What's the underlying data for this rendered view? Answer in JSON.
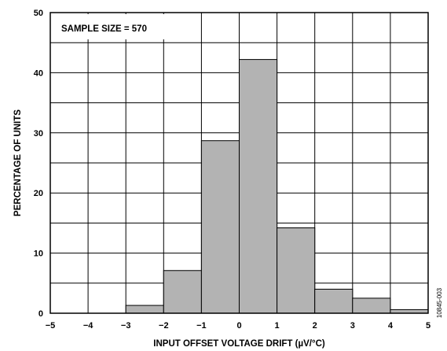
{
  "chart_data": {
    "type": "bar",
    "title": "",
    "xlabel": "INPUT OFFSET VOLTAGE DRIFT (µV/°C)",
    "ylabel": "PERCENTAGE OF UNITS",
    "xlim": [
      -5,
      5
    ],
    "ylim": [
      0,
      50
    ],
    "xticks": [
      "−5",
      "−4",
      "−3",
      "−2",
      "−1",
      "0",
      "1",
      "2",
      "3",
      "4",
      "5"
    ],
    "yticks": [
      "0",
      "10",
      "20",
      "30",
      "40",
      "50"
    ],
    "bins": [
      {
        "from": -3,
        "to": -2,
        "value": 1.3
      },
      {
        "from": -2,
        "to": -1,
        "value": 7.1
      },
      {
        "from": -1,
        "to": 0,
        "value": 28.7
      },
      {
        "from": 0,
        "to": 1,
        "value": 42.2
      },
      {
        "from": 1,
        "to": 2,
        "value": 14.2
      },
      {
        "from": 2,
        "to": 3,
        "value": 4.0
      },
      {
        "from": 3,
        "to": 4,
        "value": 2.5
      },
      {
        "from": 4,
        "to": 5,
        "value": 0.6
      }
    ],
    "annotation": "SAMPLE SIZE = 570",
    "grid": true,
    "bar_color": "#b3b3b3"
  },
  "figure_code": "10845-003"
}
